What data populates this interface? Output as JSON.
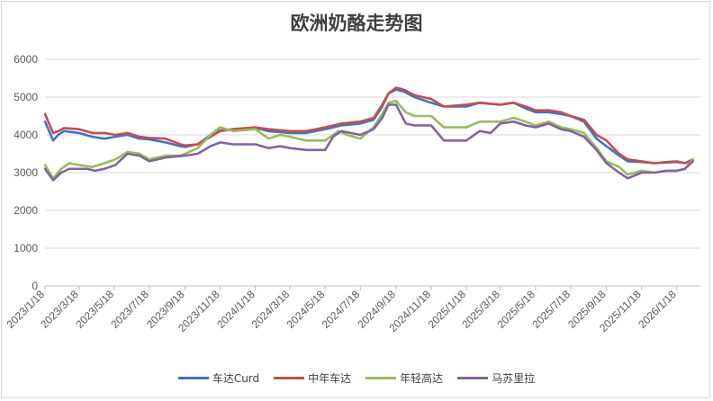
{
  "chart_data": {
    "type": "line",
    "title": "欧洲奶酪走势图",
    "xlabel": "",
    "ylabel": "",
    "ylim": [
      0,
      6000
    ],
    "yticks": [
      "0",
      "1000",
      "2000",
      "3000",
      "4000",
      "5000",
      "6000"
    ],
    "xlim": [
      "2023-01-18",
      "2026-02-28"
    ],
    "xtick_labels": [
      "2023/1/18",
      "2023/3/18",
      "2023/5/18",
      "2023/7/18",
      "2023/9/18",
      "2023/11/18",
      "2024/1/18",
      "2024/3/18",
      "2024/5/18",
      "2024/7/18",
      "2024/9/18",
      "2024/11/18",
      "2025/1/18",
      "2025/3/18",
      "2025/5/18",
      "2025/7/18",
      "2025/9/18",
      "2025/11/18",
      "2026/1/18"
    ],
    "grid": "horizontal",
    "legend_position": "bottom",
    "series": [
      {
        "name": "车达Curd",
        "color": "#4472C4",
        "points": [
          [
            "2023-01-18",
            4350
          ],
          [
            "2023-02-01",
            3850
          ],
          [
            "2023-02-10",
            4000
          ],
          [
            "2023-02-20",
            4100
          ],
          [
            "2023-03-18",
            4050
          ],
          [
            "2023-04-10",
            3950
          ],
          [
            "2023-05-01",
            3900
          ],
          [
            "2023-05-20",
            3950
          ],
          [
            "2023-06-10",
            4000
          ],
          [
            "2023-07-01",
            3900
          ],
          [
            "2023-07-18",
            3880
          ],
          [
            "2023-08-15",
            3800
          ],
          [
            "2023-09-10",
            3700
          ],
          [
            "2023-09-18",
            3680
          ],
          [
            "2023-10-10",
            3750
          ],
          [
            "2023-11-01",
            4000
          ],
          [
            "2023-11-18",
            4120
          ],
          [
            "2023-12-10",
            4150
          ],
          [
            "2024-01-18",
            4180
          ],
          [
            "2024-02-10",
            4100
          ],
          [
            "2024-03-18",
            4050
          ],
          [
            "2024-04-15",
            4050
          ],
          [
            "2024-05-18",
            4150
          ],
          [
            "2024-06-15",
            4250
          ],
          [
            "2024-07-18",
            4300
          ],
          [
            "2024-08-10",
            4400
          ],
          [
            "2024-08-25",
            4750
          ],
          [
            "2024-09-05",
            5100
          ],
          [
            "2024-09-18",
            5200
          ],
          [
            "2024-10-01",
            5150
          ],
          [
            "2024-10-20",
            5000
          ],
          [
            "2024-11-18",
            4850
          ],
          [
            "2024-12-10",
            4750
          ],
          [
            "2025-01-18",
            4750
          ],
          [
            "2025-02-10",
            4850
          ],
          [
            "2025-03-18",
            4800
          ],
          [
            "2025-04-10",
            4850
          ],
          [
            "2025-05-01",
            4700
          ],
          [
            "2025-05-18",
            4600
          ],
          [
            "2025-06-10",
            4600
          ],
          [
            "2025-07-01",
            4550
          ],
          [
            "2025-07-18",
            4500
          ],
          [
            "2025-08-10",
            4350
          ],
          [
            "2025-09-01",
            3900
          ],
          [
            "2025-09-18",
            3700
          ],
          [
            "2025-10-10",
            3450
          ],
          [
            "2025-10-25",
            3300
          ],
          [
            "2025-11-18",
            3280
          ],
          [
            "2025-12-10",
            3250
          ],
          [
            "2026-01-01",
            3270
          ],
          [
            "2026-01-18",
            3280
          ],
          [
            "2026-02-01",
            3250
          ],
          [
            "2026-02-15",
            3350
          ]
        ]
      },
      {
        "name": "中年车达",
        "color": "#C0504D",
        "points": [
          [
            "2023-01-18",
            4550
          ],
          [
            "2023-02-01",
            4050
          ],
          [
            "2023-02-10",
            4100
          ],
          [
            "2023-02-20",
            4180
          ],
          [
            "2023-03-18",
            4150
          ],
          [
            "2023-04-10",
            4050
          ],
          [
            "2023-05-01",
            4050
          ],
          [
            "2023-05-20",
            4000
          ],
          [
            "2023-06-10",
            4050
          ],
          [
            "2023-07-01",
            3950
          ],
          [
            "2023-07-18",
            3920
          ],
          [
            "2023-08-15",
            3900
          ],
          [
            "2023-09-10",
            3750
          ],
          [
            "2023-09-18",
            3720
          ],
          [
            "2023-10-10",
            3750
          ],
          [
            "2023-11-01",
            3950
          ],
          [
            "2023-11-18",
            4100
          ],
          [
            "2023-12-10",
            4150
          ],
          [
            "2024-01-18",
            4200
          ],
          [
            "2024-02-10",
            4150
          ],
          [
            "2024-03-18",
            4100
          ],
          [
            "2024-04-15",
            4100
          ],
          [
            "2024-05-18",
            4200
          ],
          [
            "2024-06-15",
            4300
          ],
          [
            "2024-07-18",
            4350
          ],
          [
            "2024-08-10",
            4450
          ],
          [
            "2024-08-25",
            4800
          ],
          [
            "2024-09-05",
            5100
          ],
          [
            "2024-09-18",
            5250
          ],
          [
            "2024-10-01",
            5200
          ],
          [
            "2024-10-20",
            5050
          ],
          [
            "2024-11-18",
            4950
          ],
          [
            "2024-12-10",
            4750
          ],
          [
            "2025-01-18",
            4800
          ],
          [
            "2025-02-10",
            4850
          ],
          [
            "2025-03-18",
            4800
          ],
          [
            "2025-04-10",
            4850
          ],
          [
            "2025-05-01",
            4750
          ],
          [
            "2025-05-18",
            4650
          ],
          [
            "2025-06-10",
            4650
          ],
          [
            "2025-07-01",
            4600
          ],
          [
            "2025-07-18",
            4500
          ],
          [
            "2025-08-10",
            4400
          ],
          [
            "2025-09-01",
            4000
          ],
          [
            "2025-09-18",
            3850
          ],
          [
            "2025-10-10",
            3500
          ],
          [
            "2025-10-25",
            3350
          ],
          [
            "2025-11-18",
            3300
          ],
          [
            "2025-12-10",
            3250
          ],
          [
            "2026-01-01",
            3280
          ],
          [
            "2026-01-18",
            3300
          ],
          [
            "2026-02-01",
            3250
          ],
          [
            "2026-02-15",
            3350
          ]
        ]
      },
      {
        "name": "年轻高达",
        "color": "#9BBB59",
        "points": [
          [
            "2023-01-18",
            3200
          ],
          [
            "2023-02-01",
            2850
          ],
          [
            "2023-02-15",
            3100
          ],
          [
            "2023-03-01",
            3250
          ],
          [
            "2023-03-18",
            3200
          ],
          [
            "2023-04-10",
            3150
          ],
          [
            "2023-05-01",
            3250
          ],
          [
            "2023-05-20",
            3350
          ],
          [
            "2023-06-10",
            3550
          ],
          [
            "2023-07-01",
            3500
          ],
          [
            "2023-07-18",
            3350
          ],
          [
            "2023-08-15",
            3450
          ],
          [
            "2023-09-10",
            3450
          ],
          [
            "2023-09-18",
            3500
          ],
          [
            "2023-10-10",
            3650
          ],
          [
            "2023-11-01",
            4000
          ],
          [
            "2023-11-18",
            4200
          ],
          [
            "2023-12-10",
            4100
          ],
          [
            "2024-01-18",
            4150
          ],
          [
            "2024-02-10",
            3900
          ],
          [
            "2024-03-01",
            4000
          ],
          [
            "2024-03-18",
            3950
          ],
          [
            "2024-04-15",
            3850
          ],
          [
            "2024-05-18",
            3850
          ],
          [
            "2024-06-10",
            4100
          ],
          [
            "2024-06-25",
            4000
          ],
          [
            "2024-07-18",
            3900
          ],
          [
            "2024-08-10",
            4200
          ],
          [
            "2024-08-25",
            4550
          ],
          [
            "2024-09-05",
            4850
          ],
          [
            "2024-09-18",
            4900
          ],
          [
            "2024-10-05",
            4600
          ],
          [
            "2024-10-20",
            4500
          ],
          [
            "2024-11-18",
            4500
          ],
          [
            "2024-12-10",
            4200
          ],
          [
            "2025-01-18",
            4200
          ],
          [
            "2025-02-10",
            4350
          ],
          [
            "2025-03-18",
            4350
          ],
          [
            "2025-04-10",
            4450
          ],
          [
            "2025-05-01",
            4350
          ],
          [
            "2025-05-18",
            4250
          ],
          [
            "2025-06-10",
            4350
          ],
          [
            "2025-07-01",
            4200
          ],
          [
            "2025-07-18",
            4150
          ],
          [
            "2025-08-10",
            4050
          ],
          [
            "2025-09-01",
            3650
          ],
          [
            "2025-09-18",
            3300
          ],
          [
            "2025-10-10",
            3150
          ],
          [
            "2025-10-25",
            2950
          ],
          [
            "2025-11-18",
            3050
          ],
          [
            "2025-12-10",
            3000
          ],
          [
            "2026-01-01",
            3050
          ],
          [
            "2026-01-18",
            3050
          ],
          [
            "2026-02-01",
            3100
          ],
          [
            "2026-02-15",
            3350
          ]
        ]
      },
      {
        "name": "马苏里拉",
        "color": "#8064A2",
        "points": [
          [
            "2023-01-18",
            3100
          ],
          [
            "2023-02-01",
            2800
          ],
          [
            "2023-02-15",
            3000
          ],
          [
            "2023-03-01",
            3100
          ],
          [
            "2023-03-18",
            3100
          ],
          [
            "2023-04-01",
            3100
          ],
          [
            "2023-04-15",
            3050
          ],
          [
            "2023-05-01",
            3100
          ],
          [
            "2023-05-20",
            3200
          ],
          [
            "2023-06-10",
            3500
          ],
          [
            "2023-07-01",
            3450
          ],
          [
            "2023-07-18",
            3300
          ],
          [
            "2023-08-15",
            3400
          ],
          [
            "2023-09-18",
            3450
          ],
          [
            "2023-10-10",
            3500
          ],
          [
            "2023-11-01",
            3700
          ],
          [
            "2023-11-18",
            3800
          ],
          [
            "2023-12-10",
            3750
          ],
          [
            "2024-01-18",
            3750
          ],
          [
            "2024-02-10",
            3650
          ],
          [
            "2024-03-01",
            3700
          ],
          [
            "2024-03-18",
            3650
          ],
          [
            "2024-04-15",
            3600
          ],
          [
            "2024-05-18",
            3600
          ],
          [
            "2024-06-01",
            3950
          ],
          [
            "2024-06-15",
            4100
          ],
          [
            "2024-07-18",
            4000
          ],
          [
            "2024-08-10",
            4150
          ],
          [
            "2024-08-25",
            4450
          ],
          [
            "2024-09-05",
            4800
          ],
          [
            "2024-09-18",
            4800
          ],
          [
            "2024-10-05",
            4300
          ],
          [
            "2024-10-20",
            4250
          ],
          [
            "2024-11-18",
            4250
          ],
          [
            "2024-12-10",
            3850
          ],
          [
            "2025-01-18",
            3850
          ],
          [
            "2025-02-10",
            4100
          ],
          [
            "2025-03-01",
            4050
          ],
          [
            "2025-03-18",
            4300
          ],
          [
            "2025-04-10",
            4350
          ],
          [
            "2025-05-01",
            4250
          ],
          [
            "2025-05-18",
            4200
          ],
          [
            "2025-06-10",
            4300
          ],
          [
            "2025-07-01",
            4150
          ],
          [
            "2025-07-18",
            4100
          ],
          [
            "2025-08-10",
            3950
          ],
          [
            "2025-09-01",
            3600
          ],
          [
            "2025-09-18",
            3250
          ],
          [
            "2025-10-10",
            3000
          ],
          [
            "2025-10-25",
            2850
          ],
          [
            "2025-11-18",
            3000
          ],
          [
            "2025-12-10",
            3000
          ],
          [
            "2026-01-01",
            3050
          ],
          [
            "2026-01-18",
            3050
          ],
          [
            "2026-02-01",
            3100
          ],
          [
            "2026-02-15",
            3300
          ]
        ]
      }
    ]
  }
}
